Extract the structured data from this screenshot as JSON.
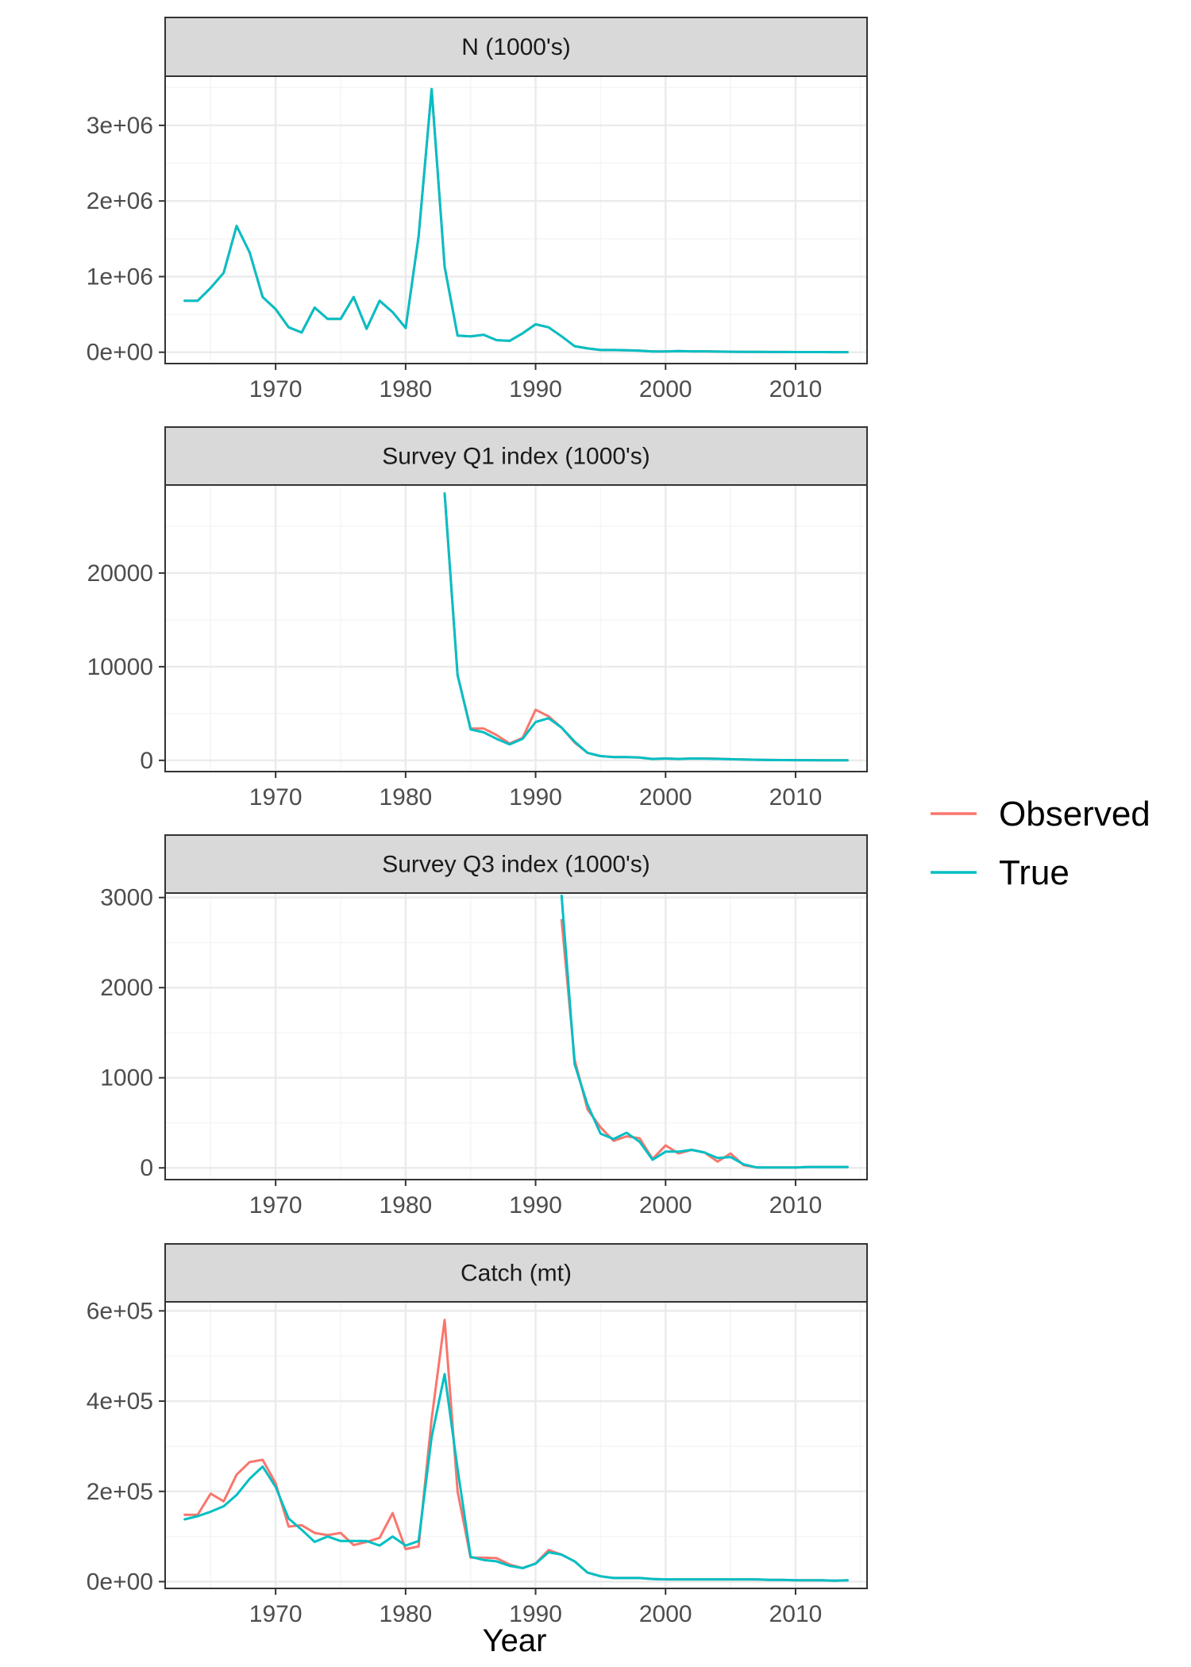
{
  "colors": {
    "observed": "#F8766D",
    "true": "#00BFC4",
    "strip_fill": "#D9D9D9",
    "border": "#333333",
    "grid_major": "#EBEBEB",
    "grid_minor": "#F5F5F5"
  },
  "legend": {
    "entries": [
      {
        "label": "Observed",
        "color": "#F8766D"
      },
      {
        "label": "True",
        "color": "#00BFC4"
      }
    ]
  },
  "x_axis": {
    "title": "Year",
    "ticks": [
      1970,
      1980,
      1990,
      2000,
      2010
    ],
    "tick_labels": [
      "1970",
      "1980",
      "1990",
      "2000",
      "2010"
    ],
    "range": [
      1961.5,
      2015.5
    ]
  },
  "chart_data": [
    {
      "type": "line",
      "title": "N (1000's)",
      "ylim": [
        -150000,
        3650000
      ],
      "yticks": [
        0,
        1000000,
        2000000,
        3000000
      ],
      "ytick_labels": [
        "0e+00",
        "1e+06",
        "2e+06",
        "3e+06"
      ],
      "series": [
        {
          "name": "Observed",
          "x": [
            1963,
            1964,
            1965,
            1966,
            1967,
            1968,
            1969,
            1970,
            1971,
            1972,
            1973,
            1974,
            1975,
            1976,
            1977,
            1978,
            1979,
            1980,
            1981,
            1982,
            1983,
            1984,
            1985,
            1986,
            1987,
            1988,
            1989,
            1990,
            1991,
            1992,
            1993,
            1994,
            1995,
            1996,
            1997,
            1998,
            1999,
            2000,
            2001,
            2002,
            2003,
            2004,
            2005,
            2006,
            2007,
            2008,
            2009,
            2010,
            2011,
            2012,
            2013,
            2014
          ],
          "y": [
            680000,
            680000,
            850000,
            1050000,
            1670000,
            1320000,
            730000,
            570000,
            330000,
            260000,
            590000,
            440000,
            440000,
            730000,
            310000,
            680000,
            530000,
            320000,
            1530000,
            3480000,
            1130000,
            220000,
            210000,
            230000,
            160000,
            150000,
            250000,
            370000,
            330000,
            210000,
            80000,
            50000,
            30000,
            30000,
            25000,
            20000,
            10000,
            10000,
            15000,
            12000,
            12000,
            8000,
            6000,
            5000,
            4000,
            3000,
            3000,
            2000,
            2000,
            2000,
            1500,
            1500
          ]
        },
        {
          "name": "True",
          "x": [
            1963,
            1964,
            1965,
            1966,
            1967,
            1968,
            1969,
            1970,
            1971,
            1972,
            1973,
            1974,
            1975,
            1976,
            1977,
            1978,
            1979,
            1980,
            1981,
            1982,
            1983,
            1984,
            1985,
            1986,
            1987,
            1988,
            1989,
            1990,
            1991,
            1992,
            1993,
            1994,
            1995,
            1996,
            1997,
            1998,
            1999,
            2000,
            2001,
            2002,
            2003,
            2004,
            2005,
            2006,
            2007,
            2008,
            2009,
            2010,
            2011,
            2012,
            2013,
            2014
          ],
          "y": [
            680000,
            680000,
            850000,
            1050000,
            1670000,
            1320000,
            730000,
            570000,
            330000,
            260000,
            590000,
            440000,
            440000,
            730000,
            310000,
            680000,
            530000,
            320000,
            1530000,
            3480000,
            1130000,
            220000,
            210000,
            230000,
            160000,
            150000,
            250000,
            370000,
            330000,
            210000,
            80000,
            50000,
            30000,
            30000,
            25000,
            20000,
            10000,
            10000,
            15000,
            12000,
            12000,
            8000,
            6000,
            5000,
            4000,
            3000,
            3000,
            2000,
            2000,
            2000,
            1500,
            1500
          ]
        }
      ]
    },
    {
      "type": "line",
      "title": "Survey Q1 index (1000's)",
      "ylim": [
        -1200,
        29400
      ],
      "yticks": [
        0,
        10000,
        20000
      ],
      "ytick_labels": [
        "0",
        "10000",
        "20000"
      ],
      "series": [
        {
          "name": "Observed",
          "x": [
            1983,
            1984,
            1985,
            1986,
            1987,
            1988,
            1989,
            1990,
            1991,
            1992,
            1993,
            1994,
            1995,
            1996,
            1997,
            1998,
            1999,
            2000,
            2001,
            2002,
            2003,
            2004,
            2005,
            2006,
            2007,
            2008,
            2009,
            2010,
            2011,
            2012,
            2013,
            2014
          ],
          "y": [
            28500,
            9100,
            3400,
            3400,
            2700,
            1800,
            2400,
            5400,
            4700,
            3500,
            1900,
            800,
            450,
            350,
            350,
            300,
            150,
            200,
            150,
            200,
            200,
            180,
            120,
            100,
            60,
            40,
            30,
            20,
            20,
            15,
            15,
            15
          ]
        },
        {
          "name": "True",
          "x": [
            1983,
            1984,
            1985,
            1986,
            1987,
            1988,
            1989,
            1990,
            1991,
            1992,
            1993,
            1994,
            1995,
            1996,
            1997,
            1998,
            1999,
            2000,
            2001,
            2002,
            2003,
            2004,
            2005,
            2006,
            2007,
            2008,
            2009,
            2010,
            2011,
            2012,
            2013,
            2014
          ],
          "y": [
            28500,
            9100,
            3300,
            3000,
            2300,
            1700,
            2300,
            4100,
            4500,
            3500,
            2000,
            800,
            450,
            350,
            350,
            300,
            150,
            200,
            150,
            200,
            180,
            160,
            120,
            100,
            60,
            40,
            30,
            20,
            20,
            15,
            15,
            15
          ]
        }
      ]
    },
    {
      "type": "line",
      "title": "Survey Q3 index (1000's)",
      "ylim": [
        -130,
        3050
      ],
      "yticks": [
        0,
        1000,
        2000,
        3000
      ],
      "ytick_labels": [
        "0",
        "1000",
        "2000",
        "3000"
      ],
      "series": [
        {
          "name": "Observed",
          "x": [
            1992,
            1993,
            1994,
            1995,
            1996,
            1997,
            1998,
            1999,
            2000,
            2001,
            2002,
            2003,
            2004,
            2005,
            2006,
            2007,
            2008,
            2009,
            2010,
            2011,
            2012,
            2013,
            2014
          ],
          "y": [
            2750,
            1200,
            650,
            450,
            300,
            350,
            330,
            100,
            250,
            160,
            200,
            170,
            70,
            160,
            30,
            5,
            5,
            5,
            5,
            10,
            10,
            10,
            10
          ]
        },
        {
          "name": "True",
          "x": [
            1992,
            1993,
            1994,
            1995,
            1996,
            1997,
            1998,
            1999,
            2000,
            2001,
            2002,
            2003,
            2004,
            2005,
            2006,
            2007,
            2008,
            2009,
            2010,
            2011,
            2012,
            2013,
            2014
          ],
          "y": [
            3020,
            1150,
            700,
            380,
            320,
            390,
            290,
            90,
            180,
            180,
            200,
            170,
            110,
            120,
            40,
            5,
            5,
            5,
            5,
            10,
            10,
            10,
            10
          ]
        }
      ]
    },
    {
      "type": "line",
      "title": "Catch (mt)",
      "ylim": [
        -15000,
        620000
      ],
      "yticks": [
        0,
        200000,
        400000,
        600000
      ],
      "ytick_labels": [
        "0e+00",
        "2e+05",
        "4e+05",
        "6e+05"
      ],
      "series": [
        {
          "name": "Observed",
          "x": [
            1963,
            1964,
            1965,
            1966,
            1967,
            1968,
            1969,
            1970,
            1971,
            1972,
            1973,
            1974,
            1975,
            1976,
            1977,
            1978,
            1979,
            1980,
            1981,
            1982,
            1983,
            1984,
            1985,
            1986,
            1987,
            1988,
            1989,
            1990,
            1991,
            1992,
            1993,
            1994,
            1995,
            1996,
            1997,
            1998,
            1999,
            2000,
            2001,
            2002,
            2003,
            2004,
            2005,
            2006,
            2007,
            2008,
            2009,
            2010,
            2011,
            2012,
            2013,
            2014
          ],
          "y": [
            148000,
            148000,
            195000,
            178000,
            237000,
            265000,
            270000,
            218000,
            122000,
            125000,
            108000,
            103000,
            108000,
            81000,
            88000,
            97000,
            152000,
            72000,
            78000,
            360000,
            580000,
            200000,
            53000,
            53000,
            52000,
            38000,
            30000,
            40000,
            70000,
            60000,
            45000,
            20000,
            12000,
            8000,
            8000,
            8000,
            6000,
            5000,
            5000,
            5000,
            5000,
            5000,
            5000,
            5000,
            5000,
            4000,
            4000,
            3000,
            3000,
            3000,
            2000,
            3000
          ]
        },
        {
          "name": "True",
          "x": [
            1963,
            1964,
            1965,
            1966,
            1967,
            1968,
            1969,
            1970,
            1971,
            1972,
            1973,
            1974,
            1975,
            1976,
            1977,
            1978,
            1979,
            1980,
            1981,
            1982,
            1983,
            1984,
            1985,
            1986,
            1987,
            1988,
            1989,
            1990,
            1991,
            1992,
            1993,
            1994,
            1995,
            1996,
            1997,
            1998,
            1999,
            2000,
            2001,
            2002,
            2003,
            2004,
            2005,
            2006,
            2007,
            2008,
            2009,
            2010,
            2011,
            2012,
            2013,
            2014
          ],
          "y": [
            138000,
            145000,
            155000,
            167000,
            192000,
            228000,
            255000,
            210000,
            140000,
            115000,
            88000,
            100000,
            90000,
            90000,
            90000,
            80000,
            100000,
            80000,
            90000,
            320000,
            460000,
            250000,
            55000,
            48000,
            45000,
            35000,
            30000,
            40000,
            65000,
            60000,
            45000,
            20000,
            12000,
            8000,
            8000,
            8000,
            6000,
            5000,
            5000,
            5000,
            5000,
            5000,
            5000,
            5000,
            5000,
            4000,
            4000,
            3000,
            3000,
            3000,
            2000,
            3000
          ]
        }
      ]
    }
  ]
}
